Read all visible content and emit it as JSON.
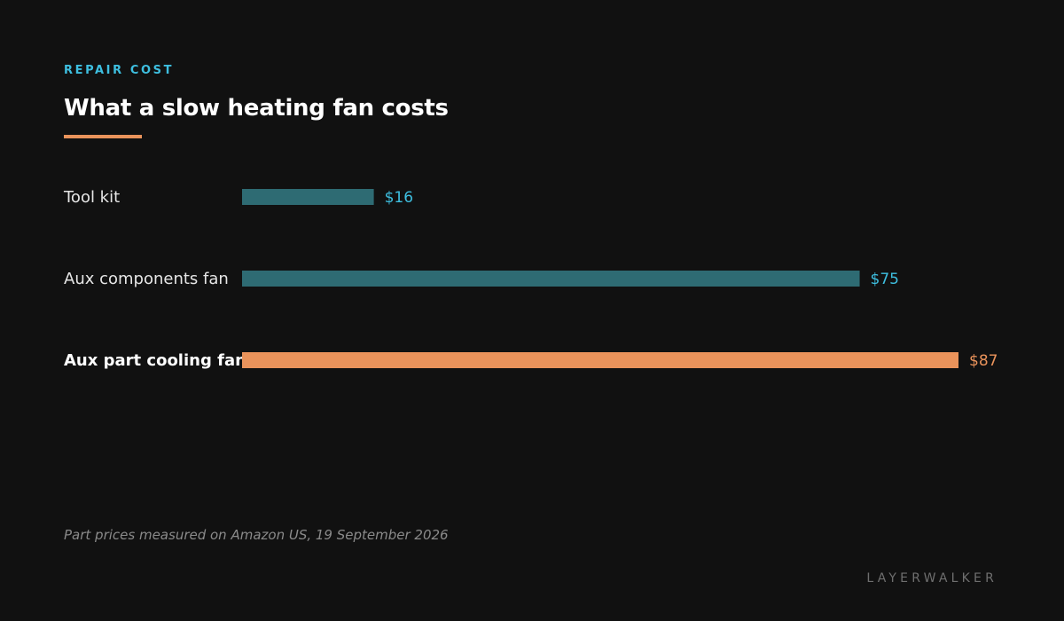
{
  "eyebrow": "REPAIR COST",
  "title": "What a slow heating fan costs",
  "source_note": "Part prices measured on Amazon US, 19 September 2026",
  "brand": "LAYERWALKER",
  "colors": {
    "background": "#111111",
    "eyebrow": "#3ebfe0",
    "accent": "#ea935b",
    "bar_default": "#2e6b73",
    "value_default": "#3ebfe0",
    "bar_highlight": "#ea935b",
    "value_highlight": "#ea935b"
  },
  "chart_data": {
    "type": "bar",
    "orientation": "horizontal",
    "categories": [
      "Tool kit",
      "Aux components fan",
      "Aux part cooling fan"
    ],
    "values": [
      16,
      75,
      87
    ],
    "value_labels": [
      "$16",
      "$75",
      "$87"
    ],
    "highlight": "Aux part cooling fan",
    "unit": "USD",
    "title": "What a slow heating fan costs",
    "xlabel": "",
    "ylabel": "",
    "xlim": [
      0,
      87
    ],
    "grid": false,
    "legend": "none"
  }
}
